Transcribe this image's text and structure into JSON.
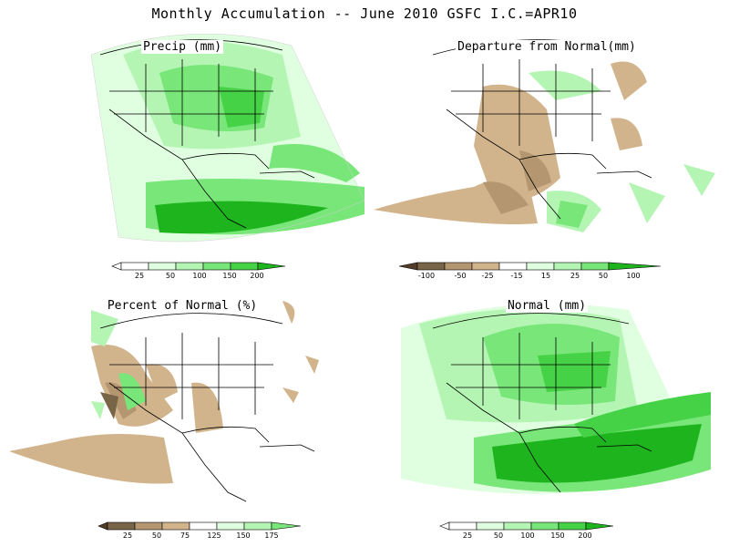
{
  "main_title": "Monthly Accumulation -- June 2010 GSFC I.C.=APR10",
  "colors": {
    "green_lightest": "#e0ffe0",
    "green_light": "#b4f5b4",
    "green_mid": "#78e678",
    "green_med": "#46d246",
    "green_dark": "#1eb41e",
    "brown_light": "#d2b48c",
    "brown_mid": "#b49670",
    "brown_dark": "#786446",
    "brown_darkest": "#503c28"
  },
  "panels": [
    {
      "title": "Precip (mm)",
      "legend": [
        "25",
        "50",
        "100",
        "150",
        "200"
      ]
    },
    {
      "title": "Departure from Normal(mm)",
      "legend": [
        "-100",
        "-50",
        "-25",
        "-15",
        "15",
        "25",
        "50",
        "100"
      ]
    },
    {
      "title": "Percent of Normal (%)",
      "legend": [
        "25",
        "50",
        "75",
        "125",
        "150",
        "175"
      ]
    },
    {
      "title": "Normal (mm)",
      "legend": [
        "25",
        "50",
        "100",
        "150",
        "200"
      ]
    }
  ]
}
